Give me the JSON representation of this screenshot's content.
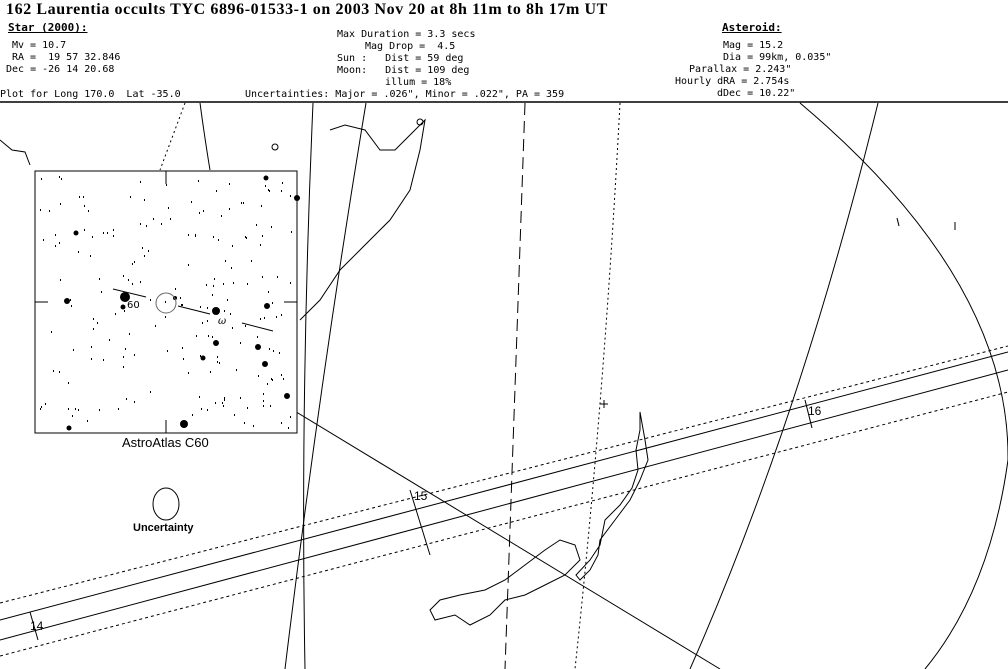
{
  "title": "162 Laurentia occults TYC 6896-01533-1 on 2003 Nov 20 at 8h 11m to 8h 17m UT",
  "star": {
    "heading": "Star (2000):",
    "mv": "Mv = 10.7",
    "ra": "RA =  19 57 32.846",
    "dec": "Dec = -26 14 20.68"
  },
  "event": {
    "max_duration": "Max Duration = 3.3 secs",
    "mag_drop": "Mag Drop =  4.5",
    "sun": "Sun :   Dist = 59 deg",
    "moon": "Moon:   Dist = 109 deg",
    "illum": "illum = 18%"
  },
  "asteroid": {
    "heading": "Asteroid:",
    "mag": "Mag = 15.2",
    "dia": "Dia = 99km, 0.035\"",
    "parallax": "Parallax = 2.243\"",
    "hourly_dra": "Hourly dRA = 2.754s",
    "ddec": "dDec = 10.22\""
  },
  "plot_for": "Plot for Long 170.0  Lat -35.0",
  "uncertainties": "Uncertainties: Major = .026\", Minor = .022\", PA = 359",
  "map": {
    "time_labels": [
      "14",
      "15",
      "16"
    ],
    "uncertainty_label": "Uncertainty"
  },
  "inset": {
    "caption": "AstroAtlas C60",
    "star_label_60": "60",
    "star_label_omega": "ω"
  }
}
